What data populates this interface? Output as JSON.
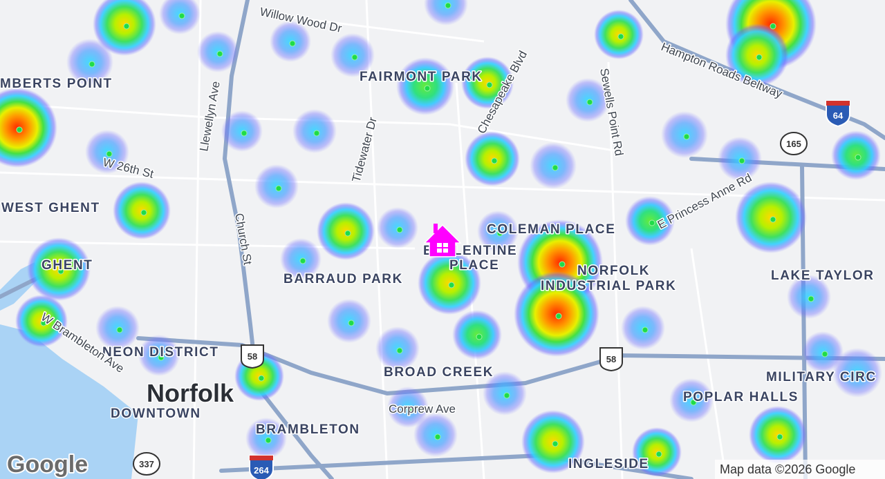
{
  "map": {
    "neighborhoods": [
      "MBERTS POINT",
      "WEST GHENT",
      "GHENT",
      "NEON DISTRICT",
      "DOWNTOWN",
      "BRAMBLETON",
      "BARRAUD PARK",
      "FAIRMONT PARK",
      "COLEMAN PLACE",
      "BALLENTINE",
      "PLACE",
      "NORFOLK",
      "INDUSTRIAL PARK",
      "LAKE TAYLOR",
      "MILITARY CIRC",
      "POPLAR HALLS",
      "BROAD CREEK",
      "INGLESIDE"
    ],
    "city": "Norfolk",
    "roads": [
      "Willow Wood Dr",
      "Llewellyn Ave",
      "Church St",
      "Tidewater Dr",
      "Chesapeake Blvd",
      "Sewells Point Rd",
      "Hampton Roads Beltway",
      "E Princess Anne Rd",
      "W 26th St",
      "W Brambleton Ave",
      "Corprew Ave"
    ],
    "shields": [
      "64",
      "165",
      "58",
      "58",
      "337",
      "264"
    ],
    "logo": "Google",
    "attribution": "Map data ©2026 Google"
  }
}
